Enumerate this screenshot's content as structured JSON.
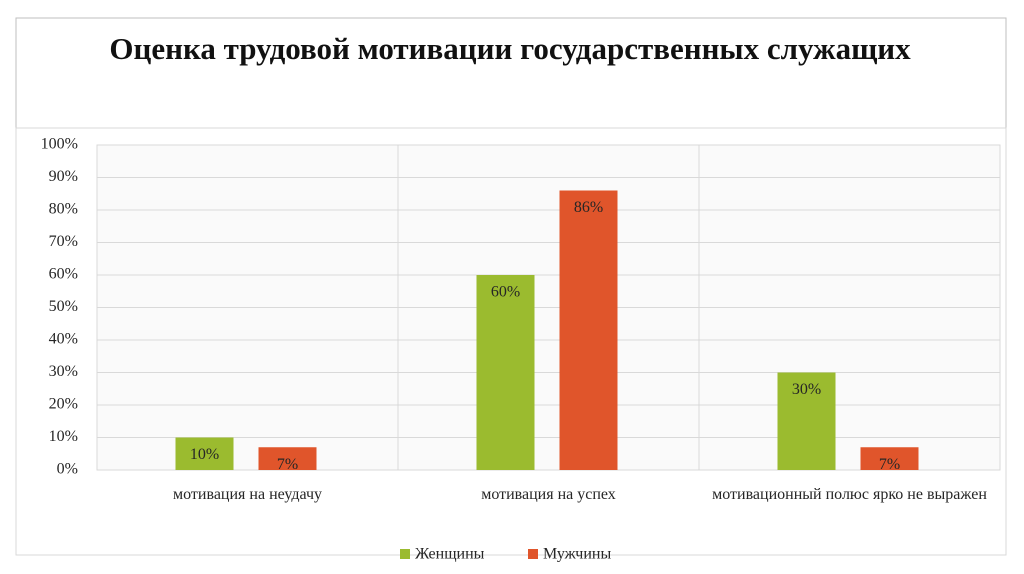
{
  "chart_data": {
    "type": "bar",
    "title": "Оценка трудовой мотивации государственных служащих",
    "categories": [
      "мотивация на неудачу",
      "мотивация на успех",
      "мотивационный полюс ярко не выражен"
    ],
    "series": [
      {
        "name": "Женщины",
        "color": "#9bbb2f",
        "values": [
          10,
          60,
          30
        ],
        "value_labels": [
          "10%",
          "60%",
          "30%"
        ]
      },
      {
        "name": "Мужчины",
        "color": "#e0552b",
        "values": [
          7,
          86,
          7
        ],
        "value_labels": [
          "7%",
          "86%",
          "7%"
        ]
      }
    ],
    "ylim": [
      0,
      100
    ],
    "yticks": [
      {
        "value": 0,
        "label": "0%"
      },
      {
        "value": 10,
        "label": "10%"
      },
      {
        "value": 20,
        "label": "20%"
      },
      {
        "value": 30,
        "label": "30%"
      },
      {
        "value": 40,
        "label": "40%"
      },
      {
        "value": 50,
        "label": "50%"
      },
      {
        "value": 60,
        "label": "60%"
      },
      {
        "value": 70,
        "label": "70%"
      },
      {
        "value": 80,
        "label": "80%"
      },
      {
        "value": 90,
        "label": "90%"
      },
      {
        "value": 100,
        "label": "100%"
      }
    ],
    "grid": true,
    "legend": "bottom"
  }
}
